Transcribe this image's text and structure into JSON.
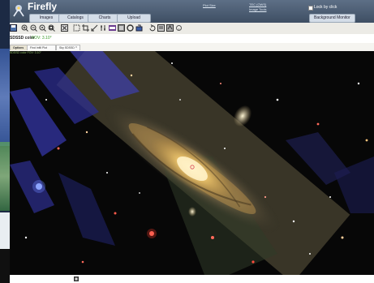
{
  "header": {
    "app_title": "Firefly",
    "tabs": [
      "Images",
      "Catalogs",
      "Charts",
      "Upload"
    ],
    "links": [
      "Plot Size",
      "TEC (OWS)",
      "Image Tools"
    ],
    "lock_label": "Lock by click",
    "bg_monitor_label": "Background Monitor"
  },
  "toolbar": {
    "icons": [
      "save-icon",
      "zoom-in-icon",
      "zoom-out-icon",
      "zoom-fit-icon",
      "zoom-fill-icon",
      "expand-icon",
      "select-area-icon",
      "crop-icon",
      "distance-tool-icon",
      "colorbar-icon",
      "color-stretch-icon",
      "layers-icon",
      "grid-icon",
      "region-icon",
      "rotate-icon",
      "flip-icon",
      "compass-icon",
      "help-icon"
    ]
  },
  "image": {
    "title": "SDSSD color",
    "fov": "FOV: 3.10°",
    "sub_label": "SDSSD color FOV: 3.10°"
  },
  "image_tabs": [
    "Options",
    "Find Infill Plot",
    "Sky SDSSD"
  ],
  "tab_close": "x",
  "colors": {
    "header_bg": "#4c5d73",
    "toolbar_bg": "#ecebe6",
    "accent_gold": "#e0b74a",
    "fov_green": "#3a9a2a"
  }
}
